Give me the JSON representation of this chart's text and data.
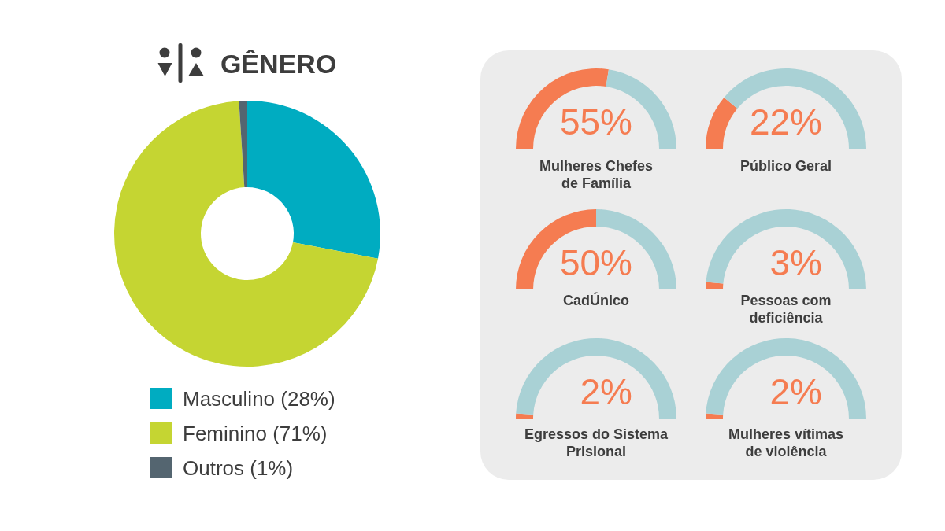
{
  "chart_data": [
    {
      "type": "donut",
      "title": "GÊNERO",
      "categories": [
        "Masculino (28%)",
        "Feminino (71%)",
        "Outros (1%)"
      ],
      "values": [
        28,
        71,
        1
      ],
      "colors": [
        "#00acc1",
        "#c5d532",
        "#546570"
      ],
      "legend": "bottom"
    },
    {
      "type": "donut",
      "title": "Mulheres Chefes\nde Família",
      "categories": [
        null,
        null
      ],
      "values": [
        55,
        45
      ],
      "colors": [
        "#f57c51",
        "#a9d1d5"
      ],
      "annotations": [
        "55%"
      ]
    },
    {
      "type": "donut",
      "title": "Público Geral",
      "categories": [
        null,
        null
      ],
      "values": [
        22,
        78
      ],
      "colors": [
        "#f57c51",
        "#a9d1d5"
      ],
      "annotations": [
        "22%"
      ]
    },
    {
      "type": "donut",
      "title": "CadÚnico",
      "categories": [
        null,
        null
      ],
      "values": [
        50,
        50
      ],
      "colors": [
        "#f57c51",
        "#a9d1d5"
      ],
      "annotations": [
        "50%"
      ]
    },
    {
      "type": "donut",
      "title": "Pessoas com\ndeficiência",
      "categories": [
        null,
        null
      ],
      "values": [
        3,
        97
      ],
      "colors": [
        "#f57c51",
        "#a9d1d5"
      ],
      "annotations": [
        "3%"
      ]
    },
    {
      "type": "donut",
      "title": "Egressos do Sistema\nPrisional",
      "categories": [
        null,
        null
      ],
      "values": [
        2,
        98
      ],
      "colors": [
        "#f57c51",
        "#a9d1d5"
      ],
      "annotations": [
        "2%"
      ]
    },
    {
      "type": "donut",
      "title": "Mulheres vítimas\nde violência",
      "categories": [
        null,
        null
      ],
      "values": [
        2,
        98
      ],
      "colors": [
        "#f57c51",
        "#a9d1d5"
      ],
      "annotations": [
        "2%"
      ]
    }
  ]
}
